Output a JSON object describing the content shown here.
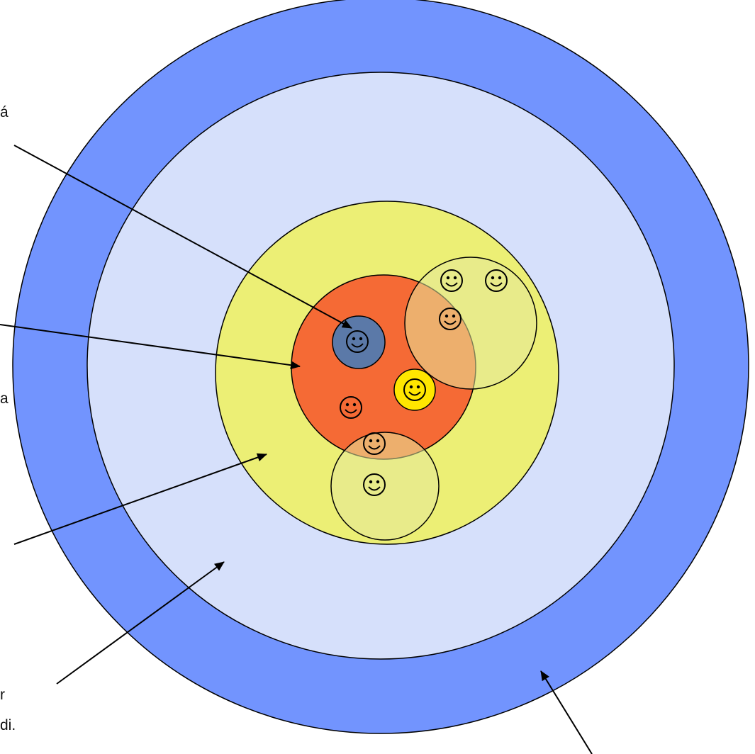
{
  "text_fragments": {
    "top_left": "á",
    "middle_left": "a",
    "lower_left_1": "r",
    "lower_left_2": "di."
  },
  "colors": {
    "outer_ring": "#7294fe",
    "light_circle": "#d6e0fb",
    "yellow_circle": "#ecef75",
    "orange_circle": "#f56a35",
    "core_circle": "#5b79a8",
    "yellow_face_circle": "#ffe600",
    "pale_overlap_circle": "#e6e89a",
    "outline": "#000000"
  },
  "faces": [
    "smiley-icon-core",
    "smiley-icon-yellow",
    "smiley-icon-orange",
    "smiley-icon-group1-a",
    "smiley-icon-group1-b",
    "smiley-icon-group1-c",
    "smiley-icon-group2-a",
    "smiley-icon-group2-b"
  ]
}
